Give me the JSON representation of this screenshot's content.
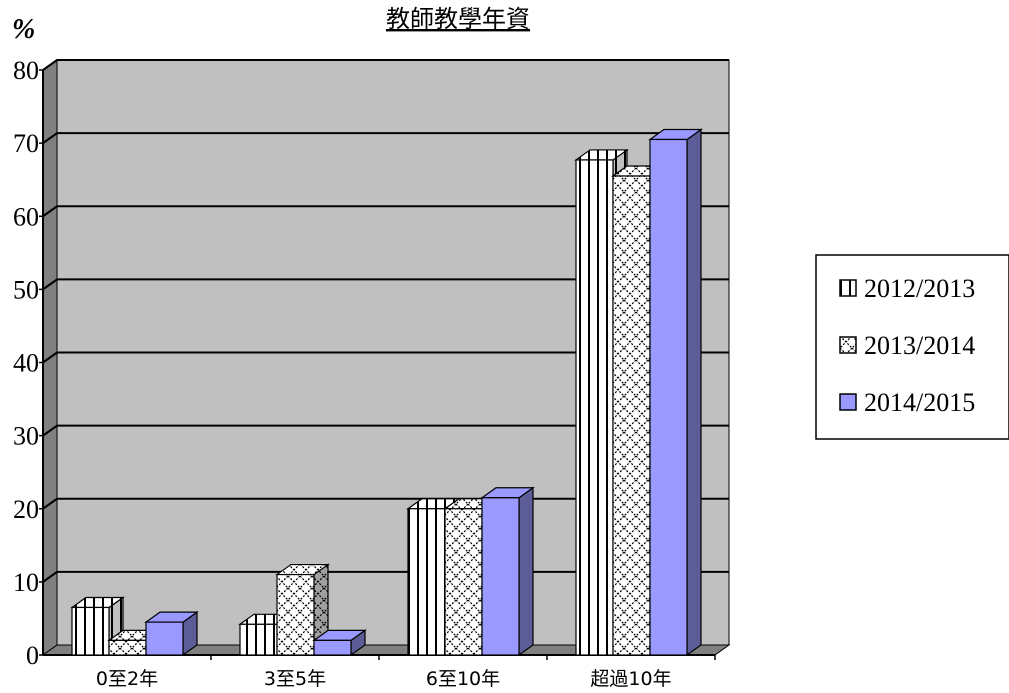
{
  "chart_data": {
    "type": "bar",
    "title": "教師教學年資",
    "ylabel": "%",
    "ylim": [
      0,
      80
    ],
    "yticks": [
      0,
      10,
      20,
      30,
      40,
      50,
      60,
      70,
      80
    ],
    "grid": true,
    "legend_position": "right",
    "categories": [
      "0至2年",
      "3至5年",
      "6至10年",
      "超過10年"
    ],
    "series": [
      {
        "name": "2012/2013",
        "values": [
          6.5,
          4.2,
          20,
          67.7
        ],
        "fill": "vertical-stripes",
        "color": "#ffffff"
      },
      {
        "name": "2013/2014",
        "values": [
          2,
          11,
          20,
          65.5
        ],
        "fill": "crosshatch",
        "color": "#ffffff"
      },
      {
        "name": "2014/2015",
        "values": [
          4.5,
          2,
          21.5,
          70.5
        ],
        "fill": "solid",
        "color": "#9999ff"
      }
    ],
    "colors": {
      "plot_background": "#c0c0c0",
      "wall": "#808080",
      "gridline": "#000000"
    }
  }
}
